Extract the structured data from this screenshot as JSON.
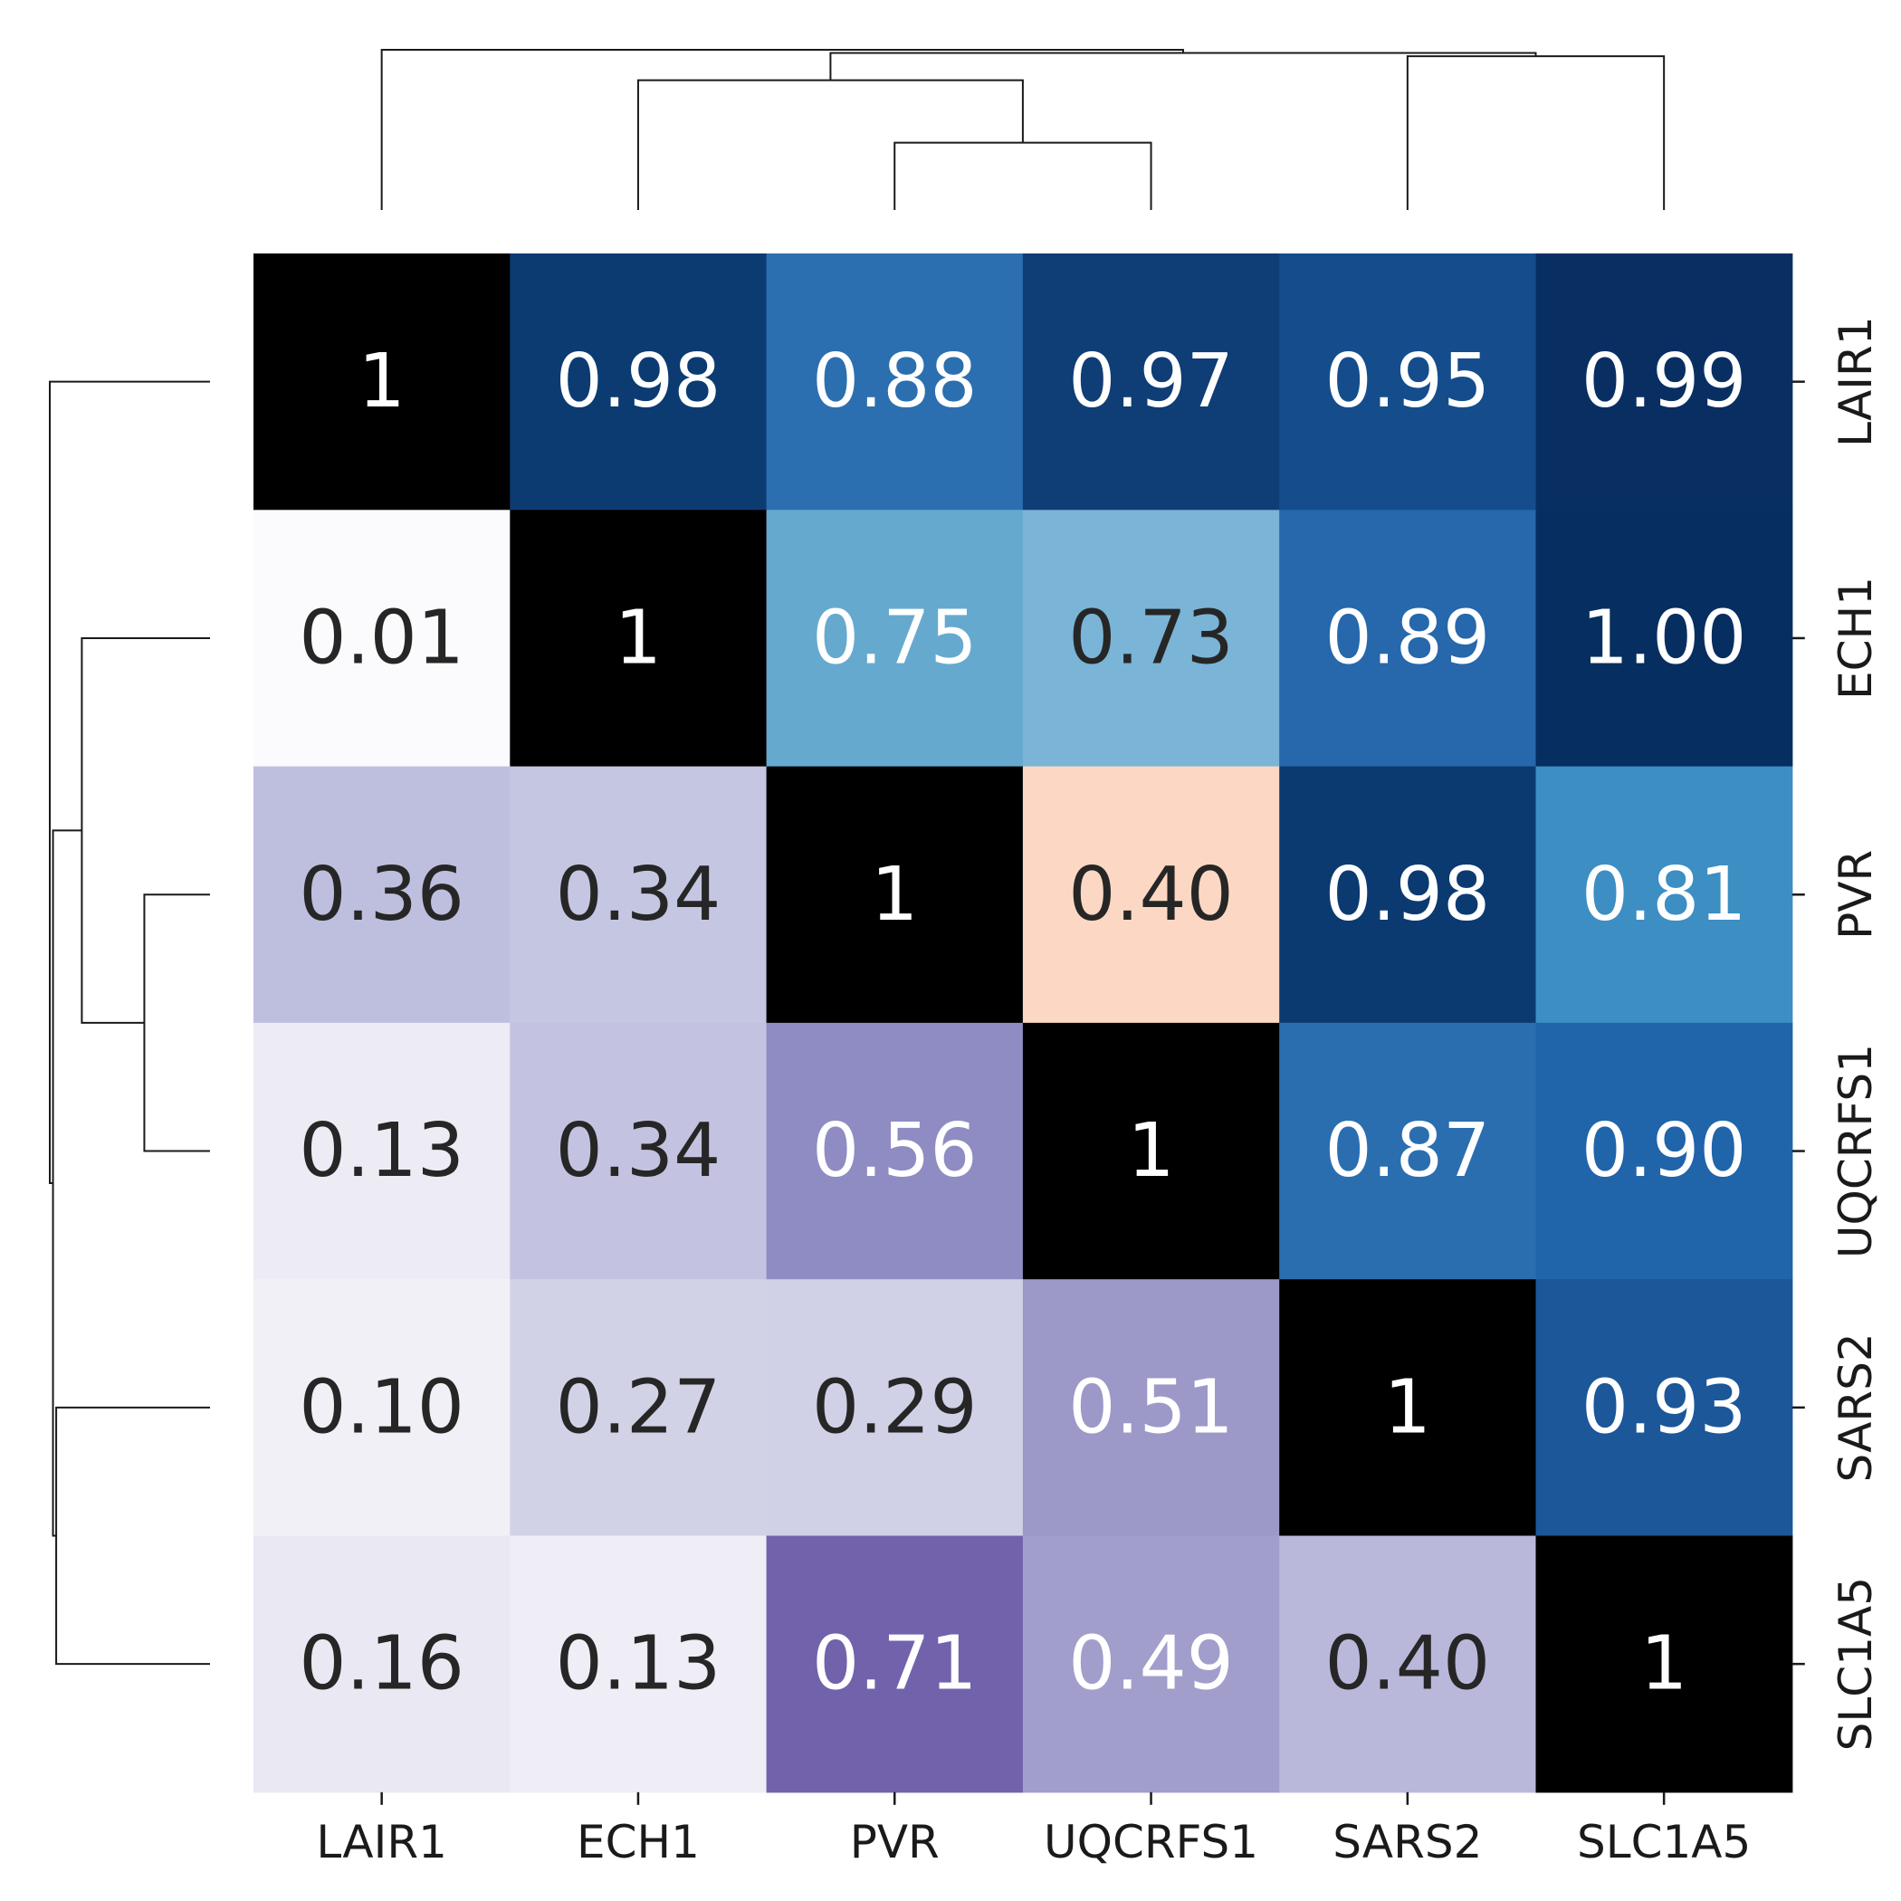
{
  "chart_data": {
    "type": "heatmap",
    "title": "",
    "xlabel": "",
    "ylabel": "",
    "genes": [
      "LAIR1",
      "ECH1",
      "PVR",
      "UQCRFS1",
      "SARS2",
      "SLC1A5"
    ],
    "x_tick_labels": [
      "LAIR1",
      "ECH1",
      "PVR",
      "UQCRFS1",
      "SARS2",
      "SLC1A5"
    ],
    "y_tick_labels": [
      "LAIR1",
      "ECH1",
      "PVR",
      "UQCRFS1",
      "SARS2",
      "SLC1A5"
    ],
    "cell_labels": [
      [
        "1",
        "0.98",
        "0.88",
        "0.97",
        "0.95",
        "0.99"
      ],
      [
        "0.01",
        "1",
        "0.75",
        "0.73",
        "0.89",
        "1.00"
      ],
      [
        "0.36",
        "0.34",
        "1",
        "0.40",
        "0.98",
        "0.81"
      ],
      [
        "0.13",
        "0.34",
        "0.56",
        "1",
        "0.87",
        "0.90"
      ],
      [
        "0.10",
        "0.27",
        "0.29",
        "0.51",
        "1",
        "0.93"
      ],
      [
        "0.16",
        "0.13",
        "0.71",
        "0.49",
        "0.40",
        "1"
      ]
    ],
    "cell_colors": [
      [
        "#000000",
        "#0c3b72",
        "#2c6fb0",
        "#0f3d75",
        "#154d8c",
        "#092f62"
      ],
      [
        "#fbfbfd",
        "#000000",
        "#66a9cf",
        "#7ab4d6",
        "#2767ac",
        "#072e60"
      ],
      [
        "#bebedf",
        "#c5c6e2",
        "#000000",
        "#fcd8c4",
        "#0b3a71",
        "#3d8ec3"
      ],
      [
        "#edecf5",
        "#c3c3e1",
        "#8e8cc2",
        "#000000",
        "#2b6eb0",
        "#2064aa"
      ],
      [
        "#f1f0f6",
        "#d2d2e7",
        "#d0d1e6",
        "#9c99c8",
        "#000000",
        "#1b5799"
      ],
      [
        "#eae8f3",
        "#efeef6",
        "#7262ac",
        "#a19ecb",
        "#b9b8db",
        "#000000"
      ]
    ],
    "text_colors": [
      [
        "#ffffff",
        "#ffffff",
        "#ffffff",
        "#ffffff",
        "#ffffff",
        "#ffffff"
      ],
      [
        "#262626",
        "#ffffff",
        "#ffffff",
        "#262626",
        "#ffffff",
        "#ffffff"
      ],
      [
        "#262626",
        "#262626",
        "#ffffff",
        "#262626",
        "#ffffff",
        "#ffffff"
      ],
      [
        "#262626",
        "#262626",
        "#ffffff",
        "#ffffff",
        "#ffffff",
        "#ffffff"
      ],
      [
        "#262626",
        "#262626",
        "#262626",
        "#ffffff",
        "#ffffff",
        "#ffffff"
      ],
      [
        "#262626",
        "#262626",
        "#ffffff",
        "#ffffff",
        "#262626",
        "#ffffff"
      ]
    ],
    "upper_triangle_colormap": "Blues",
    "lower_triangle_colormap": "Purples",
    "diagonal_color": "#000000",
    "col_dendrogram": {
      "leaf_order": [
        "LAIR1",
        "ECH1",
        "PVR",
        "UQCRFS1",
        "SARS2",
        "SLC1A5"
      ],
      "merges": [
        {
          "left": "PVR",
          "right": "UQCRFS1",
          "height": 0.42
        },
        {
          "left": "ECH1",
          "right": "PVR+UQCRFS1",
          "height": 0.81
        },
        {
          "left": "SARS2",
          "right": "SLC1A5",
          "height": 0.96
        },
        {
          "left": "ECH1+PVR+UQCRFS1",
          "right": "SARS2+SLC1A5",
          "height": 0.98
        },
        {
          "left": "LAIR1",
          "right": "ECH1+PVR+UQCRFS1+SARS2+SLC1A5",
          "height": 1.0
        }
      ]
    },
    "row_dendrogram": {
      "leaf_order": [
        "LAIR1",
        "ECH1",
        "PVR",
        "UQCRFS1",
        "SARS2",
        "SLC1A5"
      ],
      "merges": [
        {
          "left": "PVR",
          "right": "UQCRFS1",
          "height": 0.41
        },
        {
          "left": "ECH1",
          "right": "PVR+UQCRFS1",
          "height": 0.8
        },
        {
          "left": "SARS2",
          "right": "SLC1A5",
          "height": 0.96
        },
        {
          "left": "ECH1+PVR+UQCRFS1",
          "right": "SARS2+SLC1A5",
          "height": 0.98
        },
        {
          "left": "LAIR1",
          "right": "ECH1+PVR+UQCRFS1+SARS2+SLC1A5",
          "height": 1.0
        }
      ]
    }
  }
}
